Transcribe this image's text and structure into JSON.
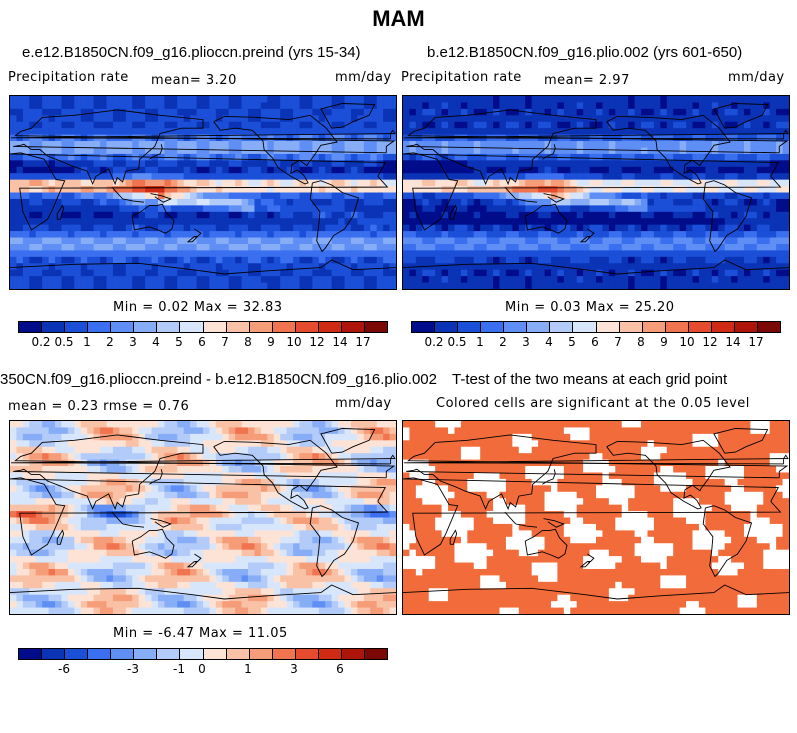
{
  "page": {
    "title": "MAM"
  },
  "panels": [
    {
      "case_title": "e.e12.B1850CN.f09_g16.plioccn.preind (yrs 15-34)",
      "left_label": "Precipitation rate",
      "mean_text": "mean=    3.20",
      "units": "mm/day",
      "minmax": "Min =   0.02 Max =  32.83",
      "map_kind": "precip_a"
    },
    {
      "case_title": "b.e12.B1850CN.f09_g16.plio.002 (yrs 601-650)",
      "left_label": "Precipitation rate",
      "mean_text": "mean=    2.97",
      "units": "mm/day",
      "minmax": "Min =   0.03 Max =  25.20",
      "map_kind": "precip_b"
    },
    {
      "case_title": "350CN.f09_g16.plioccn.preind - b.e12.B1850CN.f09_g16.plio.002",
      "left_label": "mean =    0.23     rmse =    0.76",
      "units": "mm/day",
      "minmax": "Min =  -6.47 Max =  11.05",
      "map_kind": "diff"
    },
    {
      "case_title": "T-test of the two means at each grid point",
      "subtitle": "Colored cells are significant at the 0.05 level",
      "map_kind": "ttest"
    }
  ],
  "colorbars": {
    "precip": {
      "colors": [
        "#000c8a",
        "#0b33b6",
        "#1b4fd8",
        "#3a6ff0",
        "#5f8ef5",
        "#88adf7",
        "#b3cbf9",
        "#d8e6fb",
        "#fde3d6",
        "#f9c1a6",
        "#f59c79",
        "#ef744f",
        "#e54b2d",
        "#cf2b14",
        "#ad140a",
        "#7b0805"
      ],
      "ticks": [
        "0.2",
        "0.5",
        "1",
        "2",
        "3",
        "4",
        "5",
        "6",
        "7",
        "8",
        "9",
        "10",
        "12",
        "14",
        "17"
      ]
    },
    "diff": {
      "colors": [
        "#000c8a",
        "#0b33b6",
        "#1b4fd8",
        "#3a6ff0",
        "#5f8ef5",
        "#88adf7",
        "#b3cbf9",
        "#d8e6fb",
        "#fde3d6",
        "#f9c1a6",
        "#f59c79",
        "#ef744f",
        "#e54b2d",
        "#cf2b14",
        "#ad140a",
        "#7b0805"
      ],
      "ticks": [
        "-6",
        "-3",
        "-1",
        "0",
        "1",
        "3",
        "6"
      ]
    }
  },
  "ttest_color": "#f26b3a"
}
